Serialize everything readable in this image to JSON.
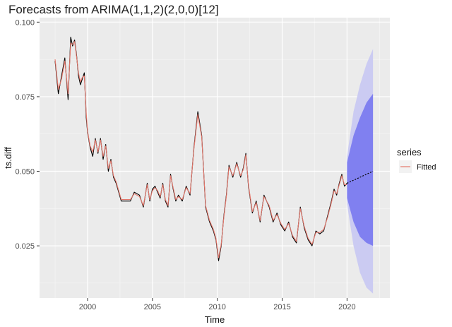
{
  "chart_data": {
    "type": "line",
    "title": "Forecasts from ARIMA(1,1,2)(2,0,0)[12]",
    "xlabel": "Time",
    "ylabel": "ts.diff",
    "xlim": [
      1996.3,
      2023.3
    ],
    "ylim": [
      0.0075,
      0.1015
    ],
    "x_ticks": [
      2000,
      2005,
      2010,
      2015,
      2020
    ],
    "x_tick_labels": [
      "2000",
      "2005",
      "2010",
      "2015",
      "2020"
    ],
    "y_ticks": [
      0.025,
      0.05,
      0.075,
      0.1
    ],
    "y_tick_labels": [
      "0.025",
      "0.050",
      "0.075",
      "0.100"
    ],
    "grid": true,
    "legend_position": "right",
    "legend_title": "series",
    "series": [
      {
        "name": "",
        "color": "#000000",
        "role": "observed",
        "x": [
          1997.5,
          1997.75,
          1998.0,
          1998.25,
          1998.5,
          1998.7,
          1998.85,
          1999.0,
          1999.15,
          1999.3,
          1999.45,
          1999.6,
          1999.75,
          1999.9,
          2000.0,
          2000.2,
          2000.4,
          2000.6,
          2000.8,
          2001.0,
          2001.2,
          2001.4,
          2001.6,
          2001.8,
          2002.0,
          2002.2,
          2002.4,
          2002.6,
          2003.0,
          2003.3,
          2003.6,
          2004.0,
          2004.3,
          2004.6,
          2004.8,
          2005.0,
          2005.2,
          2005.4,
          2005.6,
          2005.8,
          2006.0,
          2006.2,
          2006.4,
          2006.6,
          2006.8,
          2007.0,
          2007.3,
          2007.6,
          2007.9,
          2008.2,
          2008.5,
          2008.8,
          2009.1,
          2009.4,
          2009.7,
          2009.9,
          2010.1,
          2010.3,
          2010.5,
          2010.7,
          2010.9,
          2011.2,
          2011.5,
          2011.8,
          2012.0,
          2012.2,
          2012.4,
          2012.7,
          2013.0,
          2013.3,
          2013.6,
          2014.0,
          2014.3,
          2014.6,
          2014.9,
          2015.2,
          2015.5,
          2015.8,
          2016.1,
          2016.4,
          2016.7,
          2017.0,
          2017.3,
          2017.6,
          2017.9,
          2018.2,
          2018.5,
          2018.8,
          2019.0,
          2019.2,
          2019.4,
          2019.6,
          2019.8,
          2020.0
        ],
        "y": [
          0.087,
          0.076,
          0.082,
          0.088,
          0.074,
          0.095,
          0.092,
          0.094,
          0.089,
          0.082,
          0.079,
          0.081,
          0.083,
          0.068,
          0.063,
          0.058,
          0.055,
          0.061,
          0.056,
          0.061,
          0.054,
          0.059,
          0.05,
          0.054,
          0.048,
          0.046,
          0.043,
          0.04,
          0.04,
          0.04,
          0.043,
          0.042,
          0.038,
          0.046,
          0.04,
          0.044,
          0.045,
          0.043,
          0.041,
          0.046,
          0.04,
          0.038,
          0.049,
          0.044,
          0.04,
          0.042,
          0.04,
          0.045,
          0.042,
          0.058,
          0.07,
          0.062,
          0.038,
          0.033,
          0.03,
          0.027,
          0.02,
          0.025,
          0.035,
          0.042,
          0.052,
          0.048,
          0.053,
          0.048,
          0.051,
          0.056,
          0.045,
          0.036,
          0.04,
          0.033,
          0.042,
          0.038,
          0.033,
          0.036,
          0.032,
          0.03,
          0.033,
          0.028,
          0.026,
          0.038,
          0.031,
          0.027,
          0.025,
          0.03,
          0.029,
          0.03,
          0.035,
          0.04,
          0.044,
          0.042,
          0.046,
          0.049,
          0.045,
          0.046
        ]
      },
      {
        "name": "Fitted",
        "color": "#e5776b",
        "role": "fitted",
        "x": [
          1997.5,
          1997.75,
          1998.0,
          1998.25,
          1998.5,
          1998.7,
          1998.85,
          1999.0,
          1999.15,
          1999.3,
          1999.45,
          1999.6,
          1999.75,
          1999.9,
          2000.0,
          2000.2,
          2000.4,
          2000.6,
          2000.8,
          2001.0,
          2001.2,
          2001.4,
          2001.6,
          2001.8,
          2002.0,
          2002.2,
          2002.4,
          2002.6,
          2003.0,
          2003.3,
          2003.6,
          2004.0,
          2004.3,
          2004.6,
          2004.8,
          2005.0,
          2005.2,
          2005.4,
          2005.6,
          2005.8,
          2006.0,
          2006.2,
          2006.4,
          2006.6,
          2006.8,
          2007.0,
          2007.3,
          2007.6,
          2007.9,
          2008.2,
          2008.5,
          2008.8,
          2009.1,
          2009.4,
          2009.7,
          2009.9,
          2010.1,
          2010.3,
          2010.5,
          2010.7,
          2010.9,
          2011.2,
          2011.5,
          2011.8,
          2012.0,
          2012.2,
          2012.4,
          2012.7,
          2013.0,
          2013.3,
          2013.6,
          2014.0,
          2014.3,
          2014.6,
          2014.9,
          2015.2,
          2015.5,
          2015.8,
          2016.1,
          2016.4,
          2016.7,
          2017.0,
          2017.3,
          2017.6,
          2017.9,
          2018.2,
          2018.5,
          2018.8,
          2019.0,
          2019.2,
          2019.4,
          2019.6,
          2019.8,
          2020.0
        ],
        "y": [
          0.0875,
          0.0775,
          0.081,
          0.087,
          0.076,
          0.093,
          0.0925,
          0.0935,
          0.0885,
          0.083,
          0.08,
          0.0815,
          0.082,
          0.0695,
          0.0635,
          0.0585,
          0.0565,
          0.0605,
          0.0565,
          0.0605,
          0.055,
          0.0585,
          0.051,
          0.0535,
          0.0485,
          0.0465,
          0.0435,
          0.0405,
          0.0405,
          0.0405,
          0.0425,
          0.0415,
          0.0385,
          0.0455,
          0.0405,
          0.0435,
          0.0445,
          0.0435,
          0.0415,
          0.0455,
          0.0405,
          0.0385,
          0.0485,
          0.0445,
          0.0405,
          0.0415,
          0.0405,
          0.0445,
          0.0425,
          0.0575,
          0.069,
          0.0615,
          0.0385,
          0.0335,
          0.0305,
          0.0275,
          0.021,
          0.0255,
          0.0345,
          0.0415,
          0.0515,
          0.0485,
          0.0525,
          0.0485,
          0.0505,
          0.0555,
          0.0455,
          0.0365,
          0.0395,
          0.0335,
          0.0415,
          0.0385,
          0.0335,
          0.0355,
          0.0325,
          0.0305,
          0.0325,
          0.0285,
          0.0265,
          0.0375,
          0.0315,
          0.0275,
          0.0255,
          0.0295,
          0.0295,
          0.0305,
          0.0345,
          0.0395,
          0.0435,
          0.0425,
          0.0455,
          0.0485,
          0.0455,
          0.0455
        ]
      }
    ],
    "forecast": {
      "x": [
        2020.0,
        2020.5,
        2021.0,
        2021.5,
        2022.0
      ],
      "mean": [
        0.046,
        0.047,
        0.048,
        0.049,
        0.05
      ],
      "lower80": [
        0.041,
        0.033,
        0.028,
        0.026,
        0.025
      ],
      "upper80": [
        0.053,
        0.062,
        0.068,
        0.073,
        0.076
      ],
      "lower95": [
        0.039,
        0.025,
        0.016,
        0.011,
        0.009
      ],
      "upper95": [
        0.055,
        0.07,
        0.079,
        0.086,
        0.091
      ],
      "line_color": "#000000",
      "band80_color": "#8080f0",
      "band95_color": "#cbcbf2"
    }
  }
}
